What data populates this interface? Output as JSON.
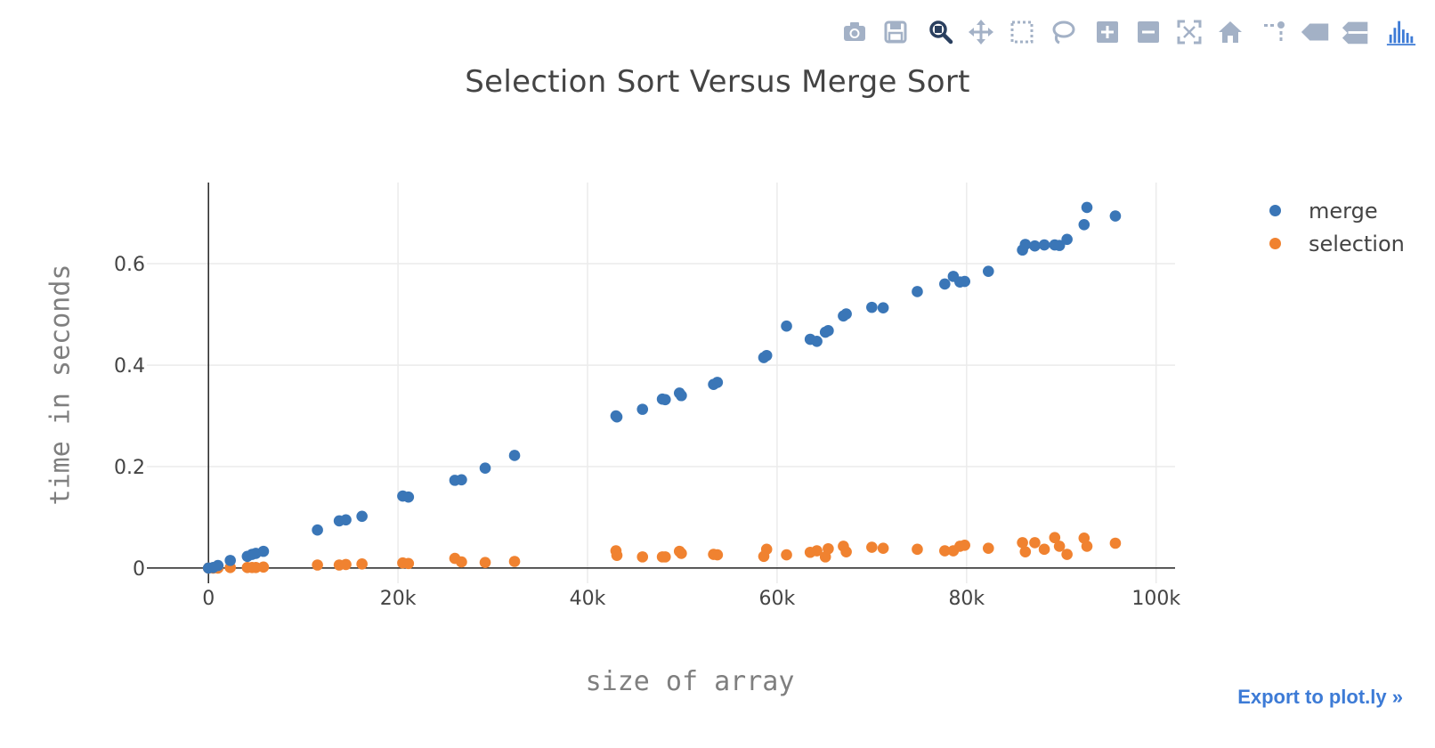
{
  "modebar": {
    "buttons": [
      {
        "icon": "camera-icon",
        "title": "Download plot as a png"
      },
      {
        "icon": "save-icon",
        "title": "Save and edit plot in cloud"
      },
      {
        "icon": "zoom-icon",
        "title": "Zoom",
        "active": true
      },
      {
        "icon": "pan-icon",
        "title": "Pan"
      },
      {
        "icon": "box-select-icon",
        "title": "Box Select"
      },
      {
        "icon": "lasso-select-icon",
        "title": "Lasso Select"
      },
      {
        "icon": "zoom-in-icon",
        "title": "Zoom in"
      },
      {
        "icon": "zoom-out-icon",
        "title": "Zoom out"
      },
      {
        "icon": "autoscale-icon",
        "title": "Autoscale"
      },
      {
        "icon": "reset-axes-icon",
        "title": "Reset axes"
      },
      {
        "icon": "spike-lines-icon",
        "title": "Toggle Spike Lines"
      },
      {
        "icon": "hover-closest-icon",
        "title": "Show closest data on hover"
      },
      {
        "icon": "hover-compare-icon",
        "title": "Compare data on hover"
      },
      {
        "icon": "plotly-logo-icon",
        "title": "Produced with Plotly"
      }
    ],
    "icon_color": "#a3b1c6",
    "active_icon_color": "#2a3f5f",
    "logo_color": "#3d7bd6"
  },
  "export_link": "Export to plot.ly »",
  "chart_data": {
    "type": "scatter",
    "title": "Selection Sort Versus Merge Sort",
    "xlabel": "size of array",
    "ylabel": "time in seconds",
    "xlim": [
      -6500,
      102000
    ],
    "ylim": [
      -0.03,
      0.76
    ],
    "xticks": [
      0,
      20000,
      40000,
      60000,
      80000,
      100000
    ],
    "xtick_labels": [
      "0",
      "20k",
      "40k",
      "60k",
      "80k",
      "100k"
    ],
    "yticks": [
      0,
      0.2,
      0.4,
      0.6
    ],
    "ytick_labels": [
      "0",
      "0.2",
      "0.4",
      "0.6"
    ],
    "grid": true,
    "legend_position": "top-right",
    "series": [
      {
        "name": "merge",
        "color": "#3a76b7",
        "x": [
          0,
          500,
          1000,
          2300,
          4100,
          4600,
          5000,
          5800,
          11500,
          13800,
          14500,
          16200,
          20500,
          21100,
          26000,
          26700,
          29200,
          32300,
          43000,
          43100,
          45800,
          47900,
          48200,
          49700,
          49900,
          53300,
          53700,
          58600,
          58900,
          61000,
          63500,
          64200,
          65100,
          65400,
          67000,
          67300,
          70000,
          71200,
          74800,
          77700,
          78600,
          79300,
          79800,
          82300,
          85900,
          86200,
          87200,
          88200,
          89300,
          89800,
          90600,
          92400,
          92700,
          95700
        ],
        "y": [
          0.0,
          0.001,
          0.005,
          0.015,
          0.023,
          0.027,
          0.029,
          0.033,
          0.075,
          0.093,
          0.095,
          0.102,
          0.142,
          0.14,
          0.173,
          0.174,
          0.197,
          0.222,
          0.3,
          0.298,
          0.313,
          0.333,
          0.332,
          0.345,
          0.34,
          0.362,
          0.366,
          0.415,
          0.419,
          0.477,
          0.451,
          0.447,
          0.465,
          0.468,
          0.497,
          0.501,
          0.514,
          0.513,
          0.545,
          0.56,
          0.575,
          0.564,
          0.565,
          0.585,
          0.627,
          0.638,
          0.635,
          0.637,
          0.637,
          0.636,
          0.648,
          0.677,
          0.711,
          0.694
        ]
      },
      {
        "name": "selection",
        "color": "#f08230",
        "x": [
          0,
          500,
          1000,
          2300,
          4100,
          4600,
          5000,
          5800,
          11500,
          13800,
          14500,
          16200,
          20500,
          21100,
          26000,
          26700,
          29200,
          32300,
          43000,
          43100,
          45800,
          47900,
          48200,
          49700,
          49900,
          53300,
          53700,
          58600,
          58900,
          61000,
          63500,
          64200,
          65100,
          65400,
          67000,
          67300,
          70000,
          71200,
          74800,
          77700,
          78600,
          79300,
          79800,
          82300,
          85900,
          86200,
          87200,
          88200,
          89300,
          89800,
          90600,
          92400,
          92700,
          95700
        ],
        "y": [
          0.0,
          0.0,
          0.0,
          0.001,
          0.001,
          0.001,
          0.001,
          0.002,
          0.006,
          0.006,
          0.007,
          0.008,
          0.01,
          0.009,
          0.019,
          0.012,
          0.011,
          0.013,
          0.034,
          0.025,
          0.022,
          0.022,
          0.022,
          0.033,
          0.029,
          0.027,
          0.026,
          0.023,
          0.037,
          0.026,
          0.031,
          0.034,
          0.022,
          0.038,
          0.043,
          0.032,
          0.041,
          0.039,
          0.037,
          0.034,
          0.034,
          0.043,
          0.045,
          0.039,
          0.05,
          0.032,
          0.05,
          0.037,
          0.06,
          0.043,
          0.027,
          0.059,
          0.043,
          0.049
        ]
      }
    ]
  }
}
